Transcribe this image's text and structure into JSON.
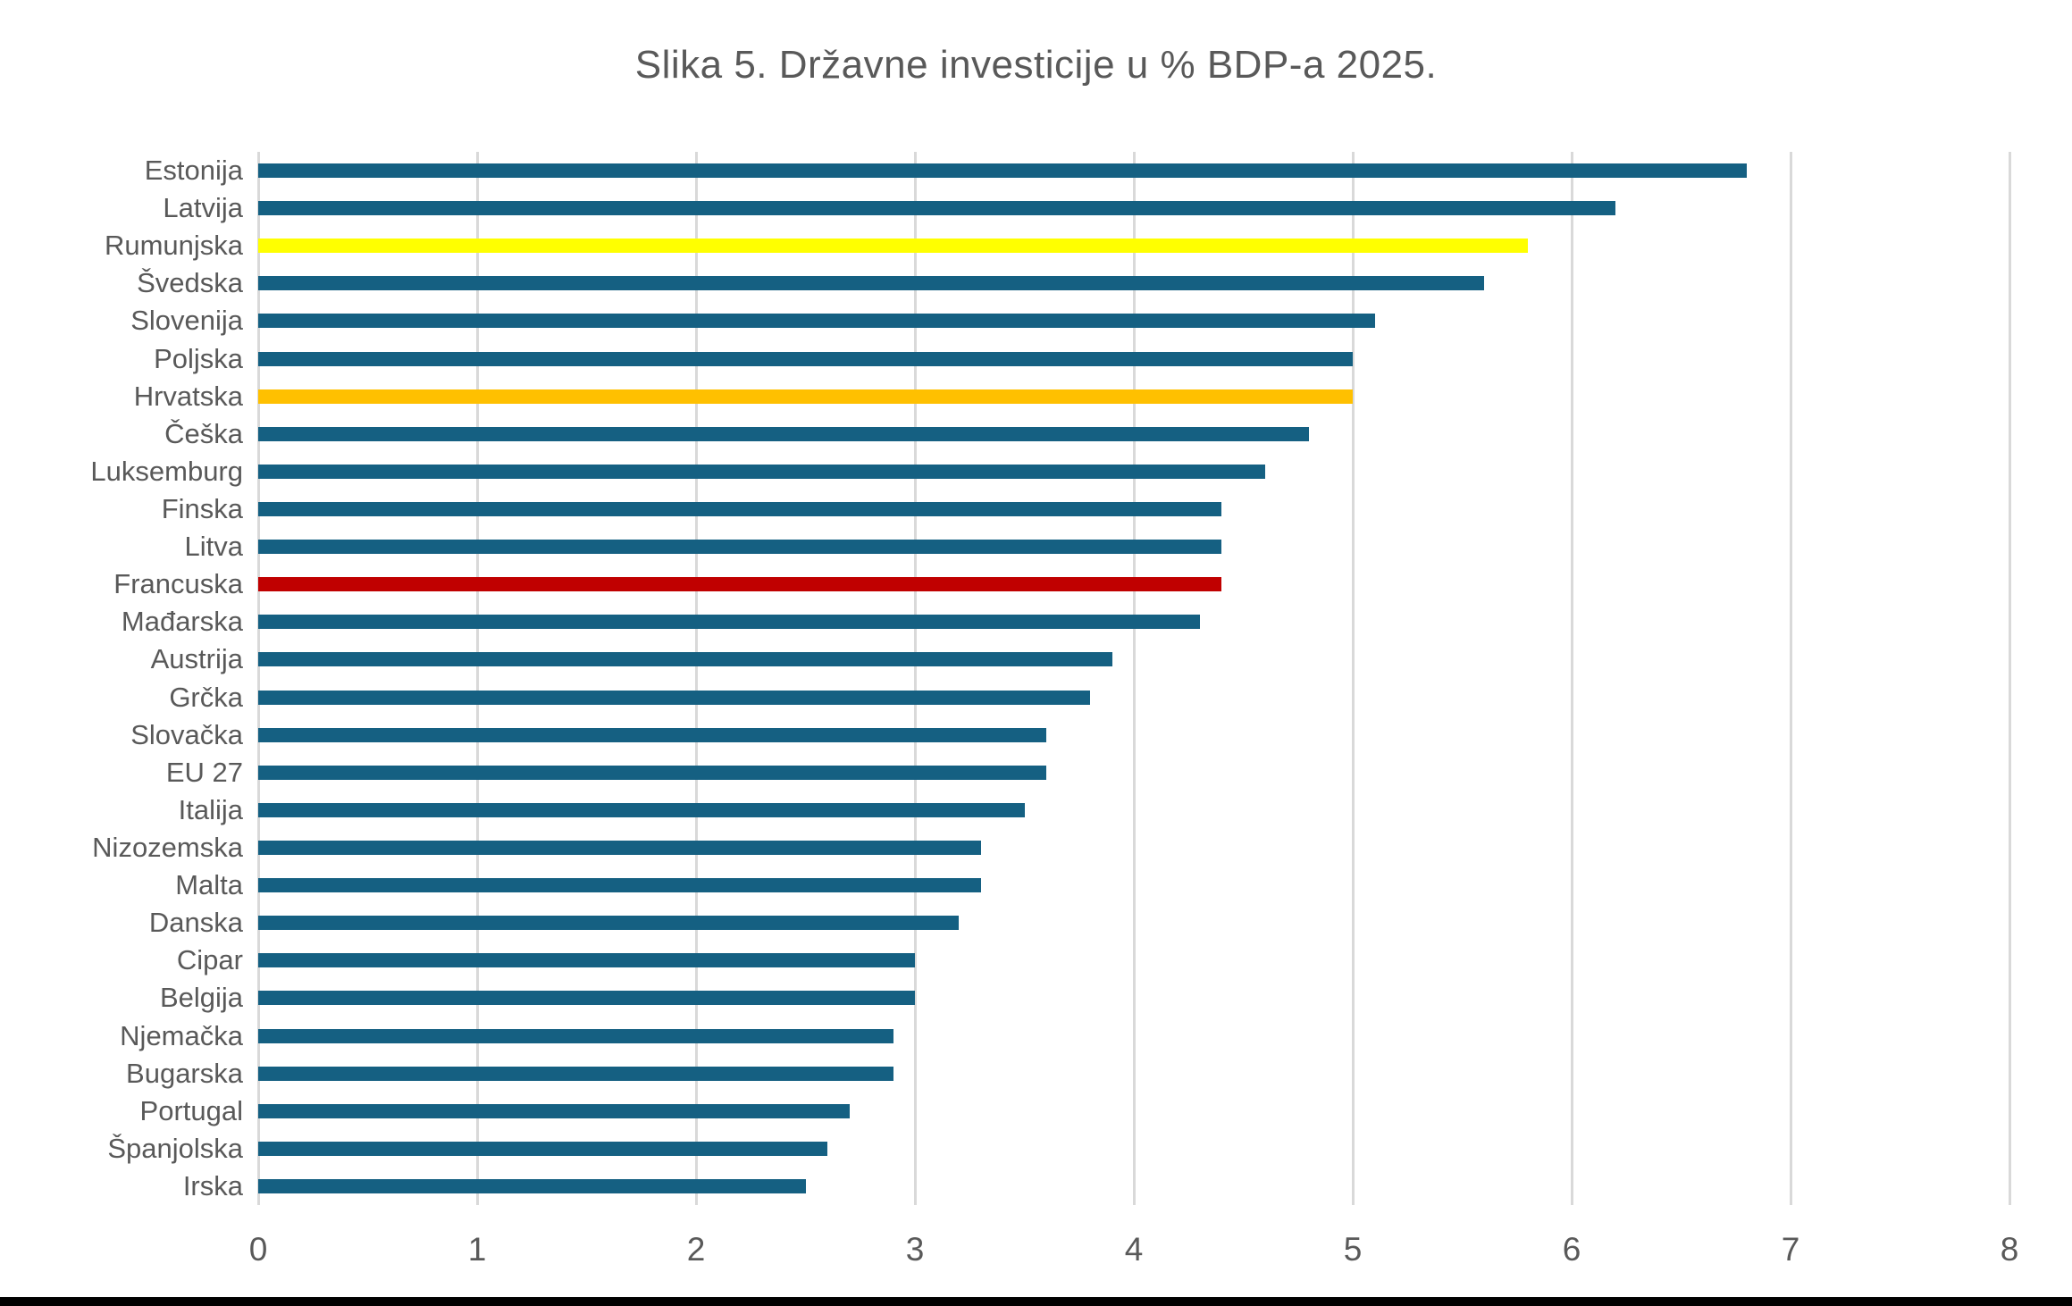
{
  "page": {
    "background_color": "#ffffff",
    "bottom_bar_color": "#000000",
    "text_color": "#595959",
    "grid_color": "#d9d9d9"
  },
  "chart_data": {
    "type": "bar",
    "orientation": "horizontal",
    "title": "Slika 5. Državne investicije u % BDP-a 2025.",
    "xlabel": "",
    "ylabel": "",
    "xlim": [
      0,
      8
    ],
    "xticks": [
      0,
      1,
      2,
      3,
      4,
      5,
      6,
      7,
      8
    ],
    "grid": true,
    "legend": false,
    "categories": [
      "Estonija",
      "Latvija",
      "Rumunjska",
      "Švedska",
      "Slovenija",
      "Poljska",
      "Hrvatska",
      "Češka",
      "Luksemburg",
      "Finska",
      "Litva",
      "Francuska",
      "Mađarska",
      "Austrija",
      "Grčka",
      "Slovačka",
      "EU 27",
      "Italija",
      "Nizozemska",
      "Malta",
      "Danska",
      "Cipar",
      "Belgija",
      "Njemačka",
      "Bugarska",
      "Portugal",
      "Španjolska",
      "Irska"
    ],
    "values": [
      6.8,
      6.2,
      5.8,
      5.6,
      5.1,
      5.0,
      5.0,
      4.8,
      4.6,
      4.4,
      4.4,
      4.4,
      4.3,
      3.9,
      3.8,
      3.6,
      3.6,
      3.5,
      3.3,
      3.3,
      3.2,
      3.0,
      3.0,
      2.9,
      2.9,
      2.7,
      2.6,
      2.5
    ],
    "bar_colors": [
      "#156082",
      "#156082",
      "#ffff00",
      "#156082",
      "#156082",
      "#156082",
      "#ffc000",
      "#156082",
      "#156082",
      "#156082",
      "#156082",
      "#c00000",
      "#156082",
      "#156082",
      "#156082",
      "#156082",
      "#156082",
      "#156082",
      "#156082",
      "#156082",
      "#156082",
      "#156082",
      "#156082",
      "#156082",
      "#156082",
      "#156082",
      "#156082",
      "#156082"
    ],
    "highlight_legend": {
      "default_color": "#156082",
      "highlights": [
        {
          "category": "Rumunjska",
          "color": "#ffff00"
        },
        {
          "category": "Hrvatska",
          "color": "#ffc000"
        },
        {
          "category": "Francuska",
          "color": "#c00000"
        }
      ]
    }
  }
}
